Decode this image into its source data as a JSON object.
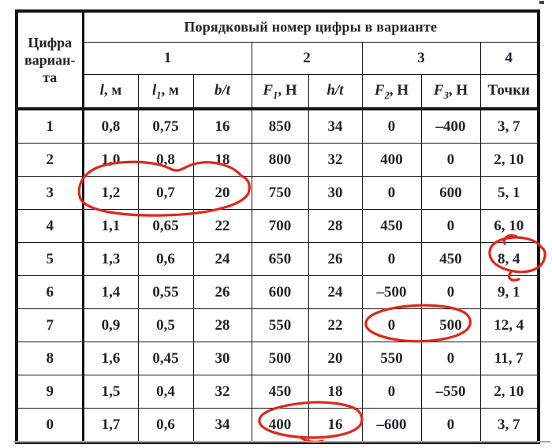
{
  "table": {
    "corner": "Цифра\nвариан-\nта",
    "title": "Порядковый номер цифры в варианте",
    "groups": [
      "1",
      "2",
      "3",
      "4"
    ],
    "columns": [
      {
        "var": "l",
        "sub": "",
        "unit": ", м"
      },
      {
        "var": "l",
        "sub": "1",
        "unit": ", м"
      },
      {
        "var": "b/t",
        "sub": "",
        "unit": ""
      },
      {
        "var": "F",
        "sub": "1",
        "unit": ", Н"
      },
      {
        "var": "h/t",
        "sub": "",
        "unit": ""
      },
      {
        "var": "F",
        "sub": "2",
        "unit": ", Н"
      },
      {
        "var": "F",
        "sub": "3",
        "unit": ", Н"
      },
      {
        "var": "Точки",
        "sub": "",
        "unit": ""
      }
    ],
    "rows": [
      [
        "1",
        "0,8",
        "0,75",
        "16",
        "850",
        "34",
        "0",
        "–400",
        "3, 7"
      ],
      [
        "2",
        "1,0",
        "0,8",
        "18",
        "800",
        "32",
        "400",
        "0",
        "2, 10"
      ],
      [
        "3",
        "1,2",
        "0,7",
        "20",
        "750",
        "30",
        "0",
        "600",
        "5, 1"
      ],
      [
        "4",
        "1,1",
        "0,65",
        "22",
        "700",
        "28",
        "450",
        "0",
        "6, 10"
      ],
      [
        "5",
        "1,3",
        "0,6",
        "24",
        "650",
        "26",
        "0",
        "450",
        "8, 4"
      ],
      [
        "6",
        "1,4",
        "0,55",
        "26",
        "600",
        "24",
        "–500",
        "0",
        "9, 1"
      ],
      [
        "7",
        "0,9",
        "0,5",
        "28",
        "550",
        "22",
        "0",
        "500",
        "12, 4"
      ],
      [
        "8",
        "1,6",
        "0,45",
        "30",
        "500",
        "20",
        "550",
        "0",
        "11, 7"
      ],
      [
        "9",
        "1,5",
        "0,4",
        "32",
        "450",
        "18",
        "0",
        "–550",
        "2, 10"
      ],
      [
        "0",
        "1,7",
        "0,6",
        "34",
        "400",
        "16",
        "–600",
        "0",
        "3, 7"
      ]
    ]
  },
  "annotations": {
    "color": "#e0261b",
    "circled": [
      "row 3: 1,2 / 0,7 / 20",
      "row 5: 8, 4",
      "row 7: 0 / 500",
      "row 0: 400 / 16"
    ]
  },
  "colors": {
    "grid": "#141414",
    "text": "#23242b",
    "page": "#ffffff"
  }
}
